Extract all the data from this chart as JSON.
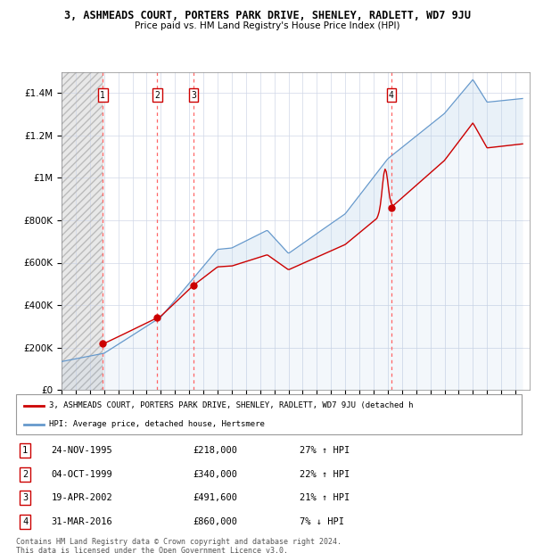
{
  "title": "3, ASHMEADS COURT, PORTERS PARK DRIVE, SHENLEY, RADLETT, WD7 9JU",
  "subtitle": "Price paid vs. HM Land Registry's House Price Index (HPI)",
  "sales": [
    {
      "num": 1,
      "date": "24-NOV-1995",
      "year": 1995.9,
      "price": 218000,
      "pct": "27%",
      "dir": "↑"
    },
    {
      "num": 2,
      "date": "04-OCT-1999",
      "year": 1999.75,
      "price": 340000,
      "pct": "22%",
      "dir": "↑"
    },
    {
      "num": 3,
      "date": "19-APR-2002",
      "year": 2002.3,
      "price": 491600,
      "pct": "21%",
      "dir": "↑"
    },
    {
      "num": 4,
      "date": "31-MAR-2016",
      "year": 2016.25,
      "price": 860000,
      "pct": "7%",
      "dir": "↓"
    }
  ],
  "legend_label_red": "3, ASHMEADS COURT, PORTERS PARK DRIVE, SHENLEY, RADLETT, WD7 9JU (detached h",
  "legend_label_blue": "HPI: Average price, detached house, Hertsmere",
  "footer": "Contains HM Land Registry data © Crown copyright and database right 2024.\nThis data is licensed under the Open Government Licence v3.0.",
  "xmin": 1993,
  "xmax": 2026,
  "ymin": 0,
  "ymax": 1500000,
  "hatch_end_year": 1995.9,
  "red_color": "#cc0000",
  "blue_color": "#6699cc",
  "dashed_line_color": "#ff6666",
  "fill_color": "#cce0f0"
}
